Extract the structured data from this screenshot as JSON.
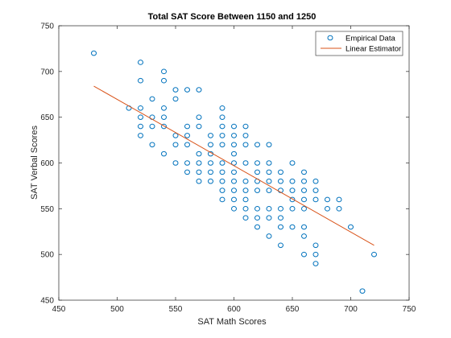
{
  "chart_data": {
    "type": "scatter",
    "title": "Total SAT Score Between 1150 and 1250",
    "xlabel": "SAT Math Scores",
    "ylabel": "SAT Verbal Scores",
    "xlim": [
      450,
      750
    ],
    "ylim": [
      450,
      750
    ],
    "xticks": [
      "450",
      "500",
      "550",
      "600",
      "650",
      "700",
      "750"
    ],
    "yticks": [
      "450",
      "500",
      "550",
      "600",
      "650",
      "700",
      "750"
    ],
    "grid": false,
    "legend_position": "top-right",
    "colors": {
      "scatter": "#0072BD",
      "line": "#D95319",
      "axes": "#262626"
    },
    "series": [
      {
        "name": "Empirical Data",
        "kind": "scatter",
        "points": [
          [
            480,
            720
          ],
          [
            510,
            660
          ],
          [
            520,
            710
          ],
          [
            520,
            690
          ],
          [
            520,
            660
          ],
          [
            520,
            650
          ],
          [
            520,
            640
          ],
          [
            520,
            630
          ],
          [
            530,
            670
          ],
          [
            530,
            650
          ],
          [
            530,
            640
          ],
          [
            530,
            620
          ],
          [
            540,
            700
          ],
          [
            540,
            690
          ],
          [
            540,
            660
          ],
          [
            540,
            650
          ],
          [
            540,
            640
          ],
          [
            540,
            610
          ],
          [
            550,
            680
          ],
          [
            550,
            670
          ],
          [
            550,
            630
          ],
          [
            550,
            620
          ],
          [
            550,
            600
          ],
          [
            560,
            680
          ],
          [
            560,
            640
          ],
          [
            560,
            630
          ],
          [
            560,
            620
          ],
          [
            560,
            600
          ],
          [
            560,
            590
          ],
          [
            570,
            680
          ],
          [
            570,
            650
          ],
          [
            570,
            640
          ],
          [
            570,
            610
          ],
          [
            570,
            600
          ],
          [
            570,
            590
          ],
          [
            570,
            580
          ],
          [
            580,
            630
          ],
          [
            580,
            620
          ],
          [
            580,
            610
          ],
          [
            580,
            600
          ],
          [
            580,
            590
          ],
          [
            580,
            580
          ],
          [
            590,
            660
          ],
          [
            590,
            650
          ],
          [
            590,
            640
          ],
          [
            590,
            630
          ],
          [
            590,
            620
          ],
          [
            590,
            600
          ],
          [
            590,
            590
          ],
          [
            590,
            580
          ],
          [
            590,
            570
          ],
          [
            590,
            560
          ],
          [
            600,
            640
          ],
          [
            600,
            630
          ],
          [
            600,
            620
          ],
          [
            600,
            610
          ],
          [
            600,
            600
          ],
          [
            600,
            590
          ],
          [
            600,
            580
          ],
          [
            600,
            570
          ],
          [
            600,
            560
          ],
          [
            600,
            550
          ],
          [
            610,
            640
          ],
          [
            610,
            630
          ],
          [
            610,
            620
          ],
          [
            610,
            600
          ],
          [
            610,
            580
          ],
          [
            610,
            570
          ],
          [
            610,
            560
          ],
          [
            610,
            550
          ],
          [
            610,
            540
          ],
          [
            620,
            620
          ],
          [
            620,
            600
          ],
          [
            620,
            590
          ],
          [
            620,
            580
          ],
          [
            620,
            570
          ],
          [
            620,
            550
          ],
          [
            620,
            540
          ],
          [
            620,
            530
          ],
          [
            630,
            620
          ],
          [
            630,
            600
          ],
          [
            630,
            590
          ],
          [
            630,
            580
          ],
          [
            630,
            570
          ],
          [
            630,
            550
          ],
          [
            630,
            540
          ],
          [
            630,
            520
          ],
          [
            640,
            590
          ],
          [
            640,
            580
          ],
          [
            640,
            570
          ],
          [
            640,
            550
          ],
          [
            640,
            540
          ],
          [
            640,
            530
          ],
          [
            640,
            510
          ],
          [
            650,
            600
          ],
          [
            650,
            580
          ],
          [
            650,
            570
          ],
          [
            650,
            560
          ],
          [
            650,
            550
          ],
          [
            650,
            530
          ],
          [
            660,
            590
          ],
          [
            660,
            580
          ],
          [
            660,
            570
          ],
          [
            660,
            560
          ],
          [
            660,
            550
          ],
          [
            660,
            530
          ],
          [
            660,
            520
          ],
          [
            660,
            500
          ],
          [
            670,
            580
          ],
          [
            670,
            570
          ],
          [
            670,
            560
          ],
          [
            670,
            510
          ],
          [
            670,
            500
          ],
          [
            670,
            490
          ],
          [
            680,
            560
          ],
          [
            680,
            550
          ],
          [
            690,
            560
          ],
          [
            690,
            550
          ],
          [
            700,
            530
          ],
          [
            710,
            460
          ],
          [
            720,
            500
          ]
        ]
      },
      {
        "name": "Linear Estimator",
        "kind": "line",
        "points": [
          [
            480,
            684
          ],
          [
            720,
            510
          ]
        ]
      }
    ]
  }
}
